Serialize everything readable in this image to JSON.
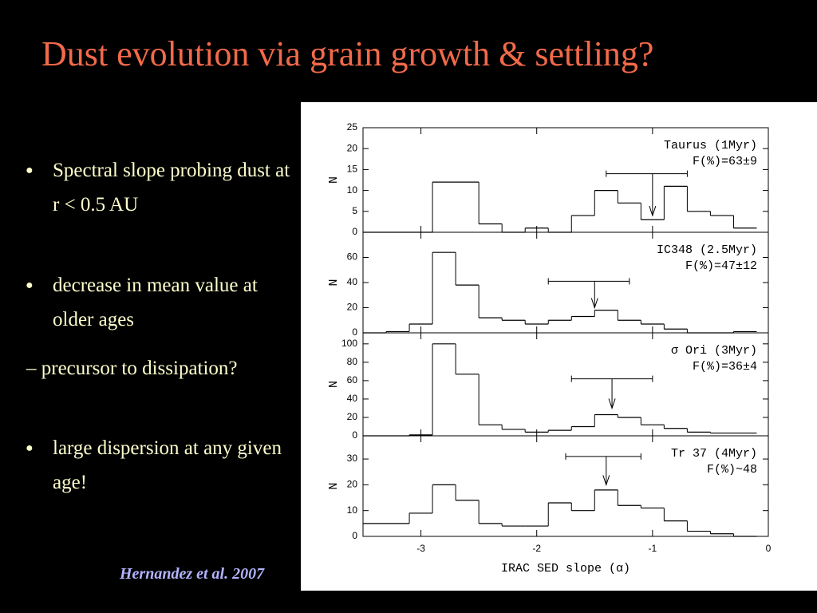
{
  "title": "Dust evolution via grain growth & settling?",
  "items": [
    {
      "bullet": true,
      "text": "Spectral slope probing dust at r < 0.5 AU"
    },
    {
      "bullet": true,
      "text": "decrease in mean value at older ages"
    },
    {
      "bullet": false,
      "text": "– precursor to dissipation?"
    },
    {
      "bullet": true,
      "text": "large dispersion at any given age!"
    }
  ],
  "citation": "Hernandez et al. 2007",
  "chart_data": [
    {
      "type": "histogram",
      "bins": [
        -3.5,
        -3.3,
        -3.1,
        -2.9,
        -2.7,
        -2.5,
        -2.3,
        -2.1,
        -1.9,
        -1.7,
        -1.5,
        -1.3,
        -1.1,
        -0.9,
        -0.7,
        -0.5,
        -0.3,
        -0.1
      ],
      "counts": [
        0,
        0,
        0,
        12,
        12,
        2,
        0,
        1,
        0,
        4,
        10,
        7,
        3,
        11,
        5,
        4,
        1
      ],
      "xlim": [
        -3.5,
        0
      ],
      "xticks": [
        -3,
        -2,
        -1,
        0
      ],
      "ylim": [
        0,
        25
      ],
      "yticks": [
        0,
        5,
        10,
        15,
        20,
        25
      ],
      "ylabel": "N",
      "annotations": [
        "Taurus (1Myr)",
        "F(%)=63±9"
      ],
      "marker": {
        "x": -1.0,
        "low": -1.4,
        "high": -0.7,
        "y": 14,
        "tip": 4
      }
    },
    {
      "type": "histogram",
      "bins": [
        -3.5,
        -3.3,
        -3.1,
        -2.9,
        -2.7,
        -2.5,
        -2.3,
        -2.1,
        -1.9,
        -1.7,
        -1.5,
        -1.3,
        -1.1,
        -0.9,
        -0.7,
        -0.5,
        -0.3,
        -0.1
      ],
      "counts": [
        0,
        1,
        7,
        64,
        38,
        12,
        10,
        7,
        10,
        13,
        18,
        10,
        7,
        3,
        0,
        0,
        1
      ],
      "xlim": [
        -3.5,
        0
      ],
      "xticks": [
        -3,
        -2,
        -1,
        0
      ],
      "ylim": [
        0,
        80
      ],
      "yticks": [
        0,
        20,
        40,
        60
      ],
      "ylabel": "N",
      "annotations": [
        "IC348 (2.5Myr)",
        "F(%)=47±12"
      ],
      "marker": {
        "x": -1.5,
        "low": -1.9,
        "high": -1.2,
        "y": 41,
        "tip": 20
      }
    },
    {
      "type": "histogram",
      "bins": [
        -3.5,
        -3.3,
        -3.1,
        -2.9,
        -2.7,
        -2.5,
        -2.3,
        -2.1,
        -1.9,
        -1.7,
        -1.5,
        -1.3,
        -1.1,
        -0.9,
        -0.7,
        -0.5,
        -0.3,
        -0.1
      ],
      "counts": [
        0,
        0,
        1,
        100,
        67,
        12,
        7,
        4,
        6,
        10,
        23,
        20,
        12,
        8,
        4,
        3,
        3
      ],
      "xlim": [
        -3.5,
        0
      ],
      "xticks": [
        -3,
        -2,
        -1,
        0
      ],
      "ylim": [
        0,
        112
      ],
      "yticks": [
        0,
        20,
        40,
        60,
        80,
        100
      ],
      "ylabel": "N",
      "annotations": [
        "σ Ori (3Myr)",
        "F(%)=36±4"
      ],
      "marker": {
        "x": -1.35,
        "low": -1.7,
        "high": -1.0,
        "y": 62,
        "tip": 30
      }
    },
    {
      "type": "histogram",
      "bins": [
        -3.5,
        -3.3,
        -3.1,
        -2.9,
        -2.7,
        -2.5,
        -2.3,
        -2.1,
        -1.9,
        -1.7,
        -1.5,
        -1.3,
        -1.1,
        -0.9,
        -0.7,
        -0.5,
        -0.3,
        -0.1
      ],
      "counts": [
        5,
        5,
        9,
        20,
        14,
        5,
        4,
        4,
        13,
        10,
        18,
        12,
        11,
        6,
        2,
        1,
        0
      ],
      "xlim": [
        -3.5,
        0
      ],
      "xticks": [
        -3,
        -2,
        -1,
        0
      ],
      "ylim": [
        0,
        39
      ],
      "yticks": [
        0,
        10,
        20,
        30
      ],
      "ylabel": "N",
      "xlabel": "IRAC SED slope (α)",
      "annotations": [
        "Tr 37 (4Myr)",
        "F(%)~48"
      ],
      "marker": {
        "x": -1.4,
        "low": -1.75,
        "high": -1.1,
        "y": 31,
        "tip": 20
      }
    }
  ]
}
